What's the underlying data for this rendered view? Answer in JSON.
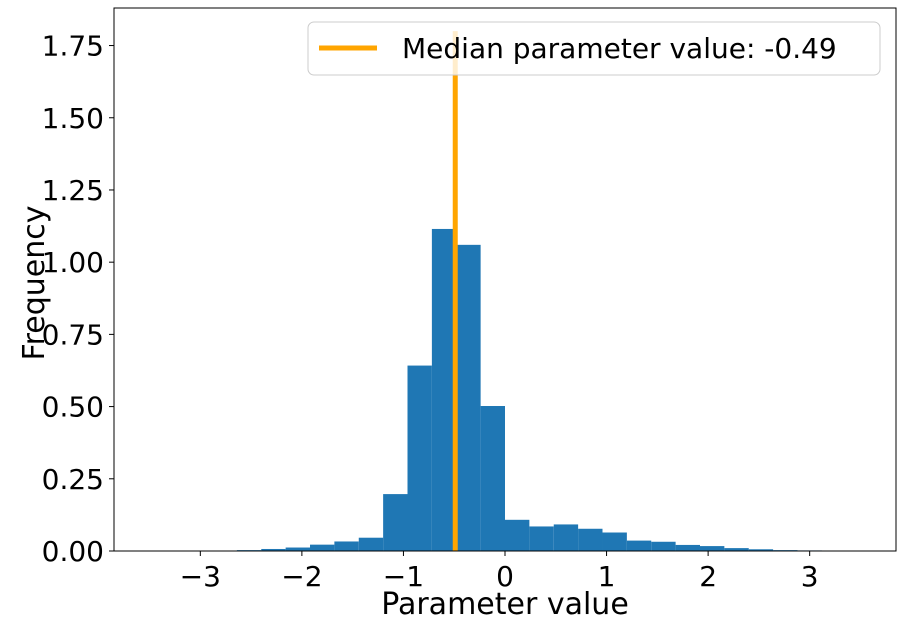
{
  "chart_data": {
    "type": "bar",
    "subtype": "histogram",
    "xlabel": "Parameter value",
    "ylabel": "Frequency",
    "xlim": [
      -3.85,
      3.85
    ],
    "ylim": [
      0,
      1.88
    ],
    "x_ticks": [
      -3,
      -2,
      -1,
      0,
      1,
      2,
      3
    ],
    "x_tick_labels": [
      "−3",
      "−2",
      "−1",
      "0",
      "1",
      "2",
      "3"
    ],
    "y_ticks": [
      0,
      0.25,
      0.5,
      0.75,
      1.0,
      1.25,
      1.5,
      1.75
    ],
    "y_tick_labels": [
      "0.00",
      "0.25",
      "0.50",
      "0.75",
      "1.00",
      "1.25",
      "1.50",
      "1.75"
    ],
    "grid": false,
    "bar_color": "#1f77b4",
    "bin_width": 0.24,
    "bins": [
      {
        "left": -3.6,
        "value": 0.0
      },
      {
        "left": -3.36,
        "value": 0.0
      },
      {
        "left": -3.12,
        "value": 0.0
      },
      {
        "left": -2.88,
        "value": 0.0
      },
      {
        "left": -2.64,
        "value": 0.003
      },
      {
        "left": -2.4,
        "value": 0.007
      },
      {
        "left": -2.16,
        "value": 0.012
      },
      {
        "left": -1.92,
        "value": 0.022
      },
      {
        "left": -1.68,
        "value": 0.033
      },
      {
        "left": -1.44,
        "value": 0.046
      },
      {
        "left": -1.2,
        "value": 0.197
      },
      {
        "left": -0.96,
        "value": 0.642
      },
      {
        "left": -0.72,
        "value": 1.115
      },
      {
        "left": -0.48,
        "value": 1.06
      },
      {
        "left": -0.24,
        "value": 0.502
      },
      {
        "left": 0.0,
        "value": 0.108
      },
      {
        "left": 0.24,
        "value": 0.085
      },
      {
        "left": 0.48,
        "value": 0.092
      },
      {
        "left": 0.72,
        "value": 0.077
      },
      {
        "left": 0.96,
        "value": 0.064
      },
      {
        "left": 1.2,
        "value": 0.036
      },
      {
        "left": 1.44,
        "value": 0.032
      },
      {
        "left": 1.68,
        "value": 0.021
      },
      {
        "left": 1.92,
        "value": 0.017
      },
      {
        "left": 2.16,
        "value": 0.01
      },
      {
        "left": 2.4,
        "value": 0.006
      },
      {
        "left": 2.64,
        "value": 0.003
      },
      {
        "left": 2.88,
        "value": 0.002
      },
      {
        "left": 3.12,
        "value": 0.0
      },
      {
        "left": 3.36,
        "value": 0.0
      }
    ],
    "median": {
      "value": -0.49,
      "color": "#ffa500",
      "legend_label": "Median parameter value: -0.49"
    },
    "legend": {
      "placement": "top-right"
    }
  }
}
